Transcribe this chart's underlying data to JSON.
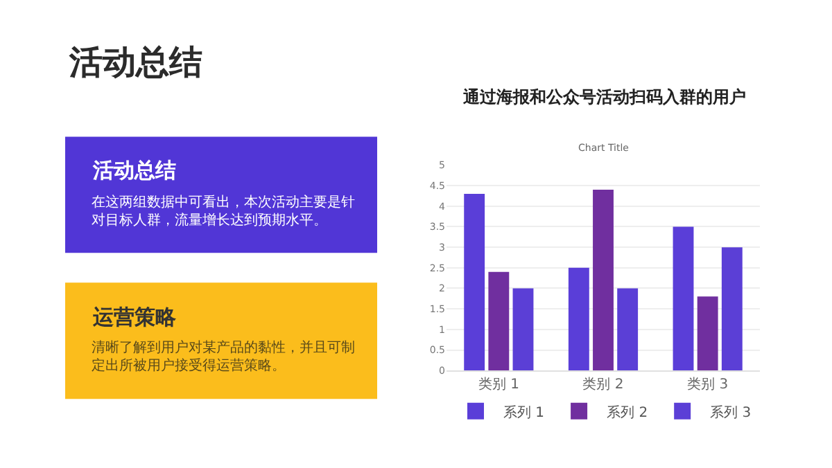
{
  "chart_data": [
    {
      "type": "other",
      "title": "活动总结",
      "annotations": [
        "活动总结",
        "在这两组数据中可看出，本次活动主要是针对目标人群，流量增长达到预期水平。",
        "运营策略",
        "清晰了解到用户对某产品的黏性，并且可制定出所被用户接受得运营策略。"
      ],
      "colors": [
        "#5136d6",
        "#fbbd1c"
      ]
    },
    {
      "type": "bar",
      "title": "通过海报和公众号活动扫码入群的用户",
      "subtitle": "Chart Title",
      "categories": [
        "类别 1",
        "类别 2",
        "类别 3"
      ],
      "series": [
        {
          "name": "系列 1",
          "color": "#5a3ed8",
          "values": [
            4.3,
            2.5,
            3.5
          ]
        },
        {
          "name": "系列 2",
          "color": "#702f9f",
          "values": [
            2.4,
            4.4,
            1.8
          ]
        },
        {
          "name": "系列 3",
          "color": "#5b3fd6",
          "values": [
            2,
            2,
            3
          ]
        }
      ],
      "ylim": [
        0,
        5
      ],
      "yticks": [
        0,
        0.5,
        1,
        1.5,
        2,
        2.5,
        3,
        3.5,
        4,
        4.5,
        5
      ],
      "grid": "y",
      "legend": "bottom"
    }
  ]
}
